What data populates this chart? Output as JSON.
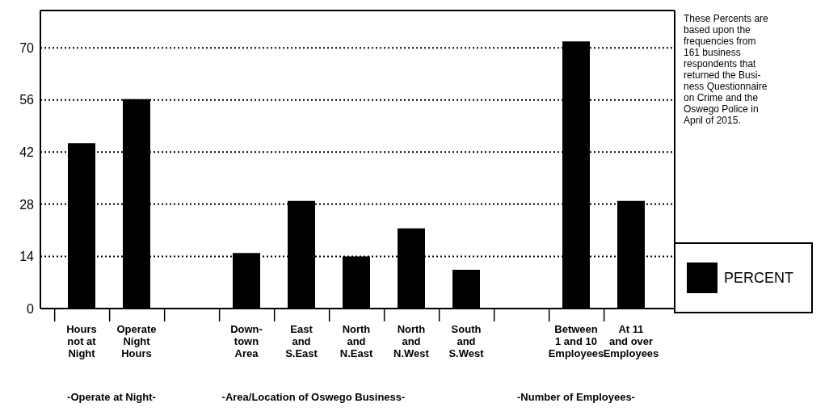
{
  "chart_data": {
    "type": "bar",
    "categories": [
      "Hours\nnot at\nNight",
      "Operate\nNight\nHours",
      null,
      "Down-\ntown\nArea",
      "East\nand\nS.East",
      "North\nand\nN.East",
      "North\nand\nN.West",
      "South\nand\nS.West",
      null,
      "Between\n1 and 10\nEmployees",
      "At 11\nand over\nEmployees"
    ],
    "series": [
      {
        "name": "PERCENT",
        "color": "#000000",
        "values": [
          44.4,
          56.2,
          null,
          14.9,
          28.9,
          14.0,
          21.5,
          10.4,
          null,
          71.7,
          28.9
        ]
      }
    ],
    "ylim": [
      0,
      80
    ],
    "yticks": [
      0,
      14,
      28,
      42,
      56,
      70
    ],
    "grid": "y",
    "legend": "right",
    "annotations": [
      "-Operate at Night-",
      "-Area/Location of Oswego Business-",
      "-Number of Employees-",
      "These Percents are\nbased upon the\nfrequencies from\n161 business\nrespondents that\nreturned the Busi-\nness Questionnaire\non Crime and the\nOswego Police in\nApril of 2015."
    ]
  }
}
